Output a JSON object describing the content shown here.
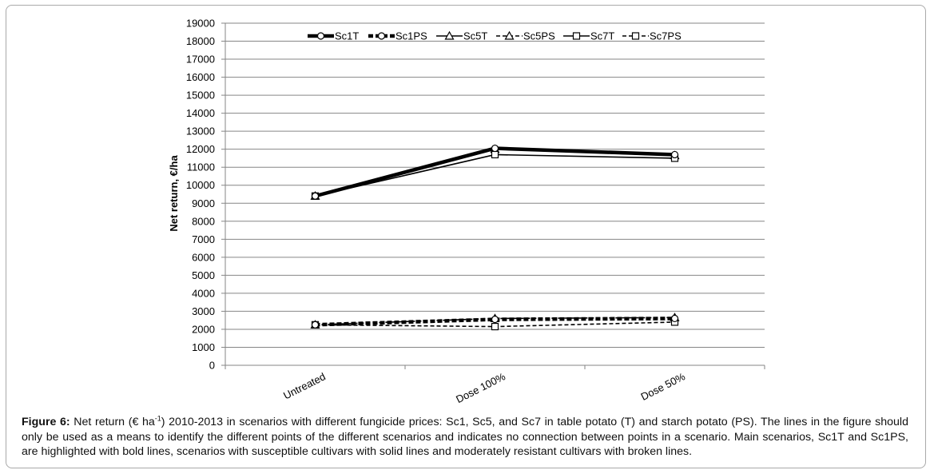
{
  "chart_data": {
    "type": "line",
    "ylabel": "Net return, €/ha",
    "xlabel": "",
    "ylim": [
      0,
      19000
    ],
    "yticks": [
      0,
      1000,
      2000,
      3000,
      4000,
      5000,
      6000,
      7000,
      8000,
      9000,
      10000,
      11000,
      12000,
      13000,
      14000,
      15000,
      16000,
      17000,
      18000,
      19000
    ],
    "grid": true,
    "legend_position": "top",
    "categories": [
      "Untreated",
      "Dose 100%",
      "Dose 50%"
    ],
    "series": [
      {
        "name": "Sc1T",
        "values": [
          9400,
          12050,
          11700
        ],
        "style": "solid-bold",
        "marker": "circle"
      },
      {
        "name": "Sc1PS",
        "values": [
          2250,
          2550,
          2600
        ],
        "style": "dashed-bold",
        "marker": "circle"
      },
      {
        "name": "Sc5T",
        "values": [
          9400,
          12000,
          11650
        ],
        "style": "solid",
        "marker": "triangle"
      },
      {
        "name": "Sc5PS",
        "values": [
          2250,
          2600,
          2650
        ],
        "style": "dashed",
        "marker": "triangle"
      },
      {
        "name": "Sc7T",
        "values": [
          9400,
          11700,
          11500
        ],
        "style": "solid",
        "marker": "square"
      },
      {
        "name": "Sc7PS",
        "values": [
          2250,
          2150,
          2400
        ],
        "style": "dashed",
        "marker": "square"
      }
    ]
  },
  "caption": {
    "label": "Figure 6:",
    "text_a": " Net return (€ ha",
    "sup": "-1",
    "text_b": ") 2010-2013 in scenarios with different fungicide prices: Sc1, Sc5, and Sc7 in table potato (T) and starch potato (PS). The lines in the figure should only be used as a means to identify the different points of the different scenarios and indicates no connection between points in a scenario. Main scenarios, Sc1T and Sc1PS, are highlighted with bold lines, scenarios with susceptible cultivars with solid lines and moderately resistant cultivars with broken lines."
  }
}
